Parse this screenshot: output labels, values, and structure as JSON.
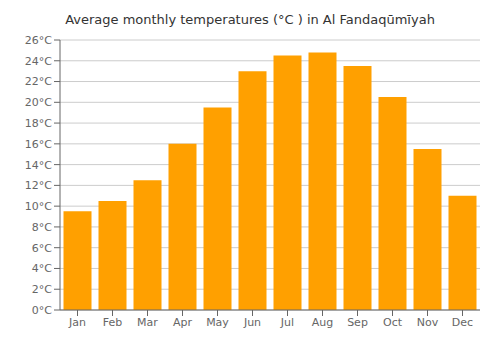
{
  "chart_data": {
    "type": "bar",
    "title": "Average monthly temperatures (°C ) in Al Fandaqūmīyah",
    "categories": [
      "Jan",
      "Feb",
      "Mar",
      "Apr",
      "May",
      "Jun",
      "Jul",
      "Aug",
      "Sep",
      "Oct",
      "Nov",
      "Dec"
    ],
    "values": [
      9.5,
      10.5,
      12.5,
      16.0,
      19.5,
      23.0,
      24.5,
      24.8,
      23.5,
      20.5,
      15.5,
      11.0
    ],
    "color": "#FFA000",
    "ylim": [
      0,
      26
    ],
    "yticks": [
      {
        "value": 0,
        "label": "0°C"
      },
      {
        "value": 2,
        "label": "2°C"
      },
      {
        "value": 4,
        "label": "4°C"
      },
      {
        "value": 6,
        "label": "6°C"
      },
      {
        "value": 8,
        "label": "8°C"
      },
      {
        "value": 10,
        "label": "10°C"
      },
      {
        "value": 12,
        "label": "12°C"
      },
      {
        "value": 14,
        "label": "14°C"
      },
      {
        "value": 16,
        "label": "16°C"
      },
      {
        "value": 18,
        "label": "18°C"
      },
      {
        "value": 20,
        "label": "20°C"
      },
      {
        "value": 22,
        "label": "22°C"
      },
      {
        "value": 24,
        "label": "24°C"
      },
      {
        "value": 26,
        "label": "26°C"
      }
    ],
    "grid": true
  }
}
